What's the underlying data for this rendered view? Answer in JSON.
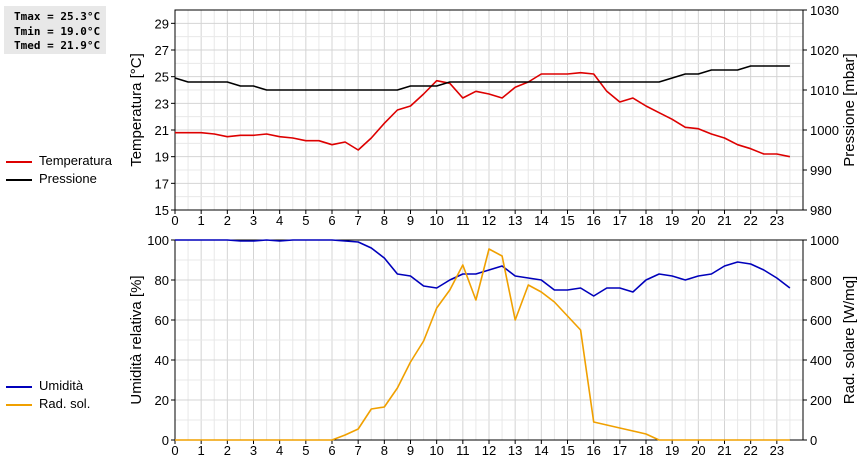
{
  "stats": {
    "tmax": "Tmax = 25.3°C",
    "tmin": "Tmin = 19.0°C",
    "tmed": "Tmed = 21.9°C"
  },
  "legend_top": [
    {
      "label": "Temperatura",
      "color": "#dd0000"
    },
    {
      "label": "Pressione",
      "color": "#000000"
    }
  ],
  "legend_bottom": [
    {
      "label": "Umidità",
      "color": "#0000bb"
    },
    {
      "label": "Rad. sol.",
      "color": "#f0a000"
    }
  ],
  "chart_data": [
    {
      "type": "line",
      "xlim": [
        0,
        24
      ],
      "x_ticks": [
        "0",
        "1",
        "2",
        "3",
        "4",
        "5",
        "6",
        "7",
        "8",
        "9",
        "10",
        "11",
        "12",
        "13",
        "14",
        "15",
        "16",
        "17",
        "18",
        "19",
        "20",
        "21",
        "22",
        "23"
      ],
      "ylabel": "Temperatura [°C]",
      "ylim": [
        15,
        30
      ],
      "y_ticks": [
        "15",
        "17",
        "19",
        "21",
        "23",
        "25",
        "27",
        "29"
      ],
      "ylabel_right": "Pressione [mbar]",
      "ylim_right": [
        980,
        1030
      ],
      "y_ticks_right": [
        "980",
        "990",
        "1000",
        "1010",
        "1020",
        "1030"
      ],
      "grid": true,
      "series": [
        {
          "name": "Temperatura",
          "axis": "left",
          "color": "#dd0000",
          "x": [
            0,
            0.5,
            1,
            1.5,
            2,
            2.5,
            3,
            3.5,
            4,
            4.5,
            5,
            5.5,
            6,
            6.5,
            7,
            7.5,
            8,
            8.5,
            9,
            9.5,
            10,
            10.5,
            11,
            11.5,
            12,
            12.5,
            13,
            13.5,
            14,
            14.5,
            15,
            15.5,
            16,
            16.5,
            17,
            17.5,
            18,
            18.5,
            19,
            19.5,
            20,
            20.5,
            21,
            21.5,
            22,
            22.5,
            23,
            23.5
          ],
          "values": [
            20.8,
            20.8,
            20.8,
            20.7,
            20.5,
            20.6,
            20.6,
            20.7,
            20.5,
            20.4,
            20.2,
            20.2,
            19.9,
            20.1,
            19.5,
            20.4,
            21.5,
            22.5,
            22.8,
            23.7,
            24.7,
            24.5,
            23.4,
            23.9,
            23.7,
            23.4,
            24.2,
            24.6,
            25.2,
            25.2,
            25.2,
            25.3,
            25.2,
            23.9,
            23.1,
            23.4,
            22.8,
            22.3,
            21.8,
            21.2,
            21.1,
            20.7,
            20.4,
            19.9,
            19.6,
            19.2,
            19.2,
            19.0
          ]
        },
        {
          "name": "Pressione",
          "axis": "right",
          "color": "#000000",
          "x": [
            0,
            0.5,
            1,
            1.5,
            2,
            2.5,
            3,
            3.5,
            4,
            4.5,
            5,
            5.5,
            6,
            6.5,
            7,
            7.5,
            8,
            8.5,
            9,
            9.5,
            10,
            10.5,
            11,
            11.5,
            12,
            12.5,
            13,
            13.5,
            14,
            14.5,
            15,
            15.5,
            16,
            16.5,
            17,
            17.5,
            18,
            18.5,
            19,
            19.5,
            20,
            20.5,
            21,
            21.5,
            22,
            22.5,
            23,
            23.5
          ],
          "values": [
            1013,
            1012,
            1012,
            1012,
            1012,
            1011,
            1011,
            1010,
            1010,
            1010,
            1010,
            1010,
            1010,
            1010,
            1010,
            1010,
            1010,
            1010,
            1011,
            1011,
            1011,
            1012,
            1012,
            1012,
            1012,
            1012,
            1012,
            1012,
            1012,
            1012,
            1012,
            1012,
            1012,
            1012,
            1012,
            1012,
            1012,
            1012,
            1013,
            1014,
            1014,
            1015,
            1015,
            1015,
            1016,
            1016,
            1016,
            1016
          ]
        }
      ]
    },
    {
      "type": "line",
      "xlim": [
        0,
        24
      ],
      "x_ticks": [
        "0",
        "1",
        "2",
        "3",
        "4",
        "5",
        "6",
        "7",
        "8",
        "9",
        "10",
        "11",
        "12",
        "13",
        "14",
        "15",
        "16",
        "17",
        "18",
        "19",
        "20",
        "21",
        "22",
        "23"
      ],
      "ylabel": "Umidità relativa [%]",
      "ylim": [
        0,
        100
      ],
      "y_ticks": [
        "0",
        "20",
        "40",
        "60",
        "80",
        "100"
      ],
      "ylabel_right": "Rad. solare [W/mq]",
      "ylim_right": [
        0,
        1000
      ],
      "y_ticks_right": [
        "0",
        "200",
        "400",
        "600",
        "800",
        "1000"
      ],
      "grid": true,
      "series": [
        {
          "name": "Umidità",
          "axis": "left",
          "color": "#0000bb",
          "x": [
            0,
            0.5,
            1,
            1.5,
            2,
            2.5,
            3,
            3.5,
            4,
            4.5,
            5,
            5.5,
            6,
            6.5,
            7,
            7.5,
            8,
            8.5,
            9,
            9.5,
            10,
            10.5,
            11,
            11.5,
            12,
            12.5,
            13,
            13.5,
            14,
            14.5,
            15,
            15.5,
            16,
            16.5,
            17,
            17.5,
            18,
            18.5,
            19,
            19.5,
            20,
            20.5,
            21,
            21.5,
            22,
            22.5,
            23,
            23.5
          ],
          "values": [
            100,
            100,
            100,
            100,
            100,
            99.5,
            99.5,
            100,
            99.5,
            100,
            100,
            100,
            100,
            99.5,
            99,
            96,
            91,
            83,
            82,
            77,
            76,
            80,
            83,
            83,
            85,
            87,
            82,
            81,
            80,
            75,
            75,
            76,
            72,
            76,
            76,
            74,
            80,
            83,
            82,
            80,
            82,
            83,
            87,
            89,
            88,
            85,
            81,
            76
          ]
        },
        {
          "name": "Rad. sol.",
          "axis": "right",
          "color": "#f0a000",
          "x": [
            0,
            1,
            2,
            3,
            4,
            5,
            6,
            6.5,
            7,
            7.5,
            8,
            8.5,
            9,
            9.5,
            10,
            10.5,
            11,
            11.5,
            12,
            12.5,
            13,
            13.5,
            14,
            14.5,
            15,
            15.5,
            16,
            17,
            18,
            18.5,
            19,
            20,
            21,
            22,
            23,
            23.5
          ],
          "values": [
            0,
            0,
            0,
            0,
            0,
            0,
            0,
            25,
            55,
            155,
            165,
            260,
            390,
            495,
            660,
            750,
            875,
            700,
            955,
            920,
            600,
            775,
            740,
            690,
            620,
            550,
            90,
            60,
            30,
            0,
            0,
            0,
            0,
            0,
            0,
            0
          ]
        }
      ]
    }
  ]
}
